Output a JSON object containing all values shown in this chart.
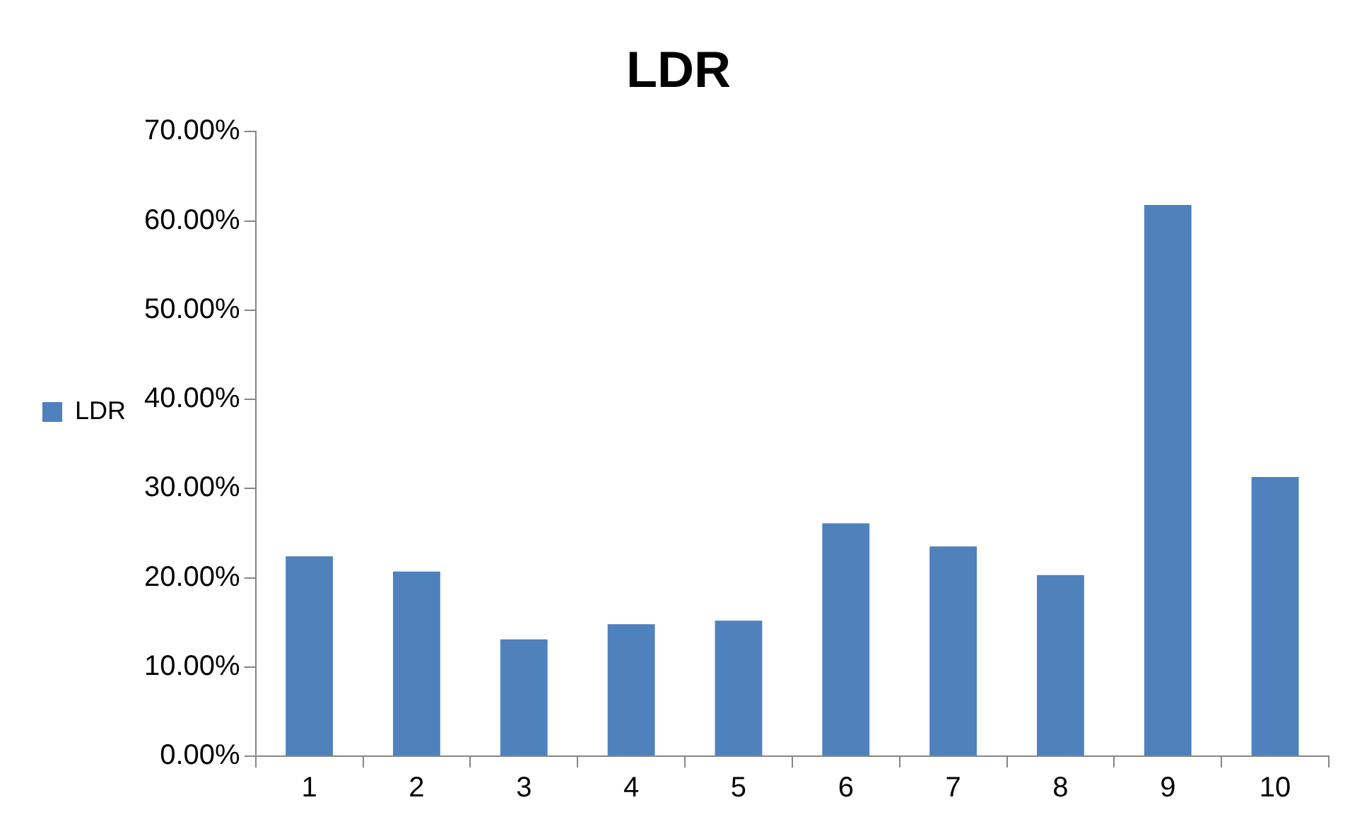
{
  "chart_data": {
    "type": "bar",
    "title": "LDR",
    "categories": [
      "1",
      "2",
      "3",
      "4",
      "5",
      "6",
      "7",
      "8",
      "9",
      "10"
    ],
    "series": [
      {
        "name": "LDR",
        "color": "#4f81bd",
        "values": [
          22.4,
          20.7,
          13.1,
          14.8,
          15.2,
          26.1,
          23.5,
          20.3,
          61.8,
          31.3
        ]
      }
    ],
    "ylim": [
      0,
      70
    ],
    "yticks": [
      {
        "value": 0,
        "label": "0.00%"
      },
      {
        "value": 10,
        "label": "10.00%"
      },
      {
        "value": 20,
        "label": "20.00%"
      },
      {
        "value": 30,
        "label": "30.00%"
      },
      {
        "value": 40,
        "label": "40.00%"
      },
      {
        "value": 50,
        "label": "50.00%"
      },
      {
        "value": 60,
        "label": "60.00%"
      },
      {
        "value": 70,
        "label": "70.00%"
      }
    ],
    "grid": false,
    "legend": "left"
  }
}
